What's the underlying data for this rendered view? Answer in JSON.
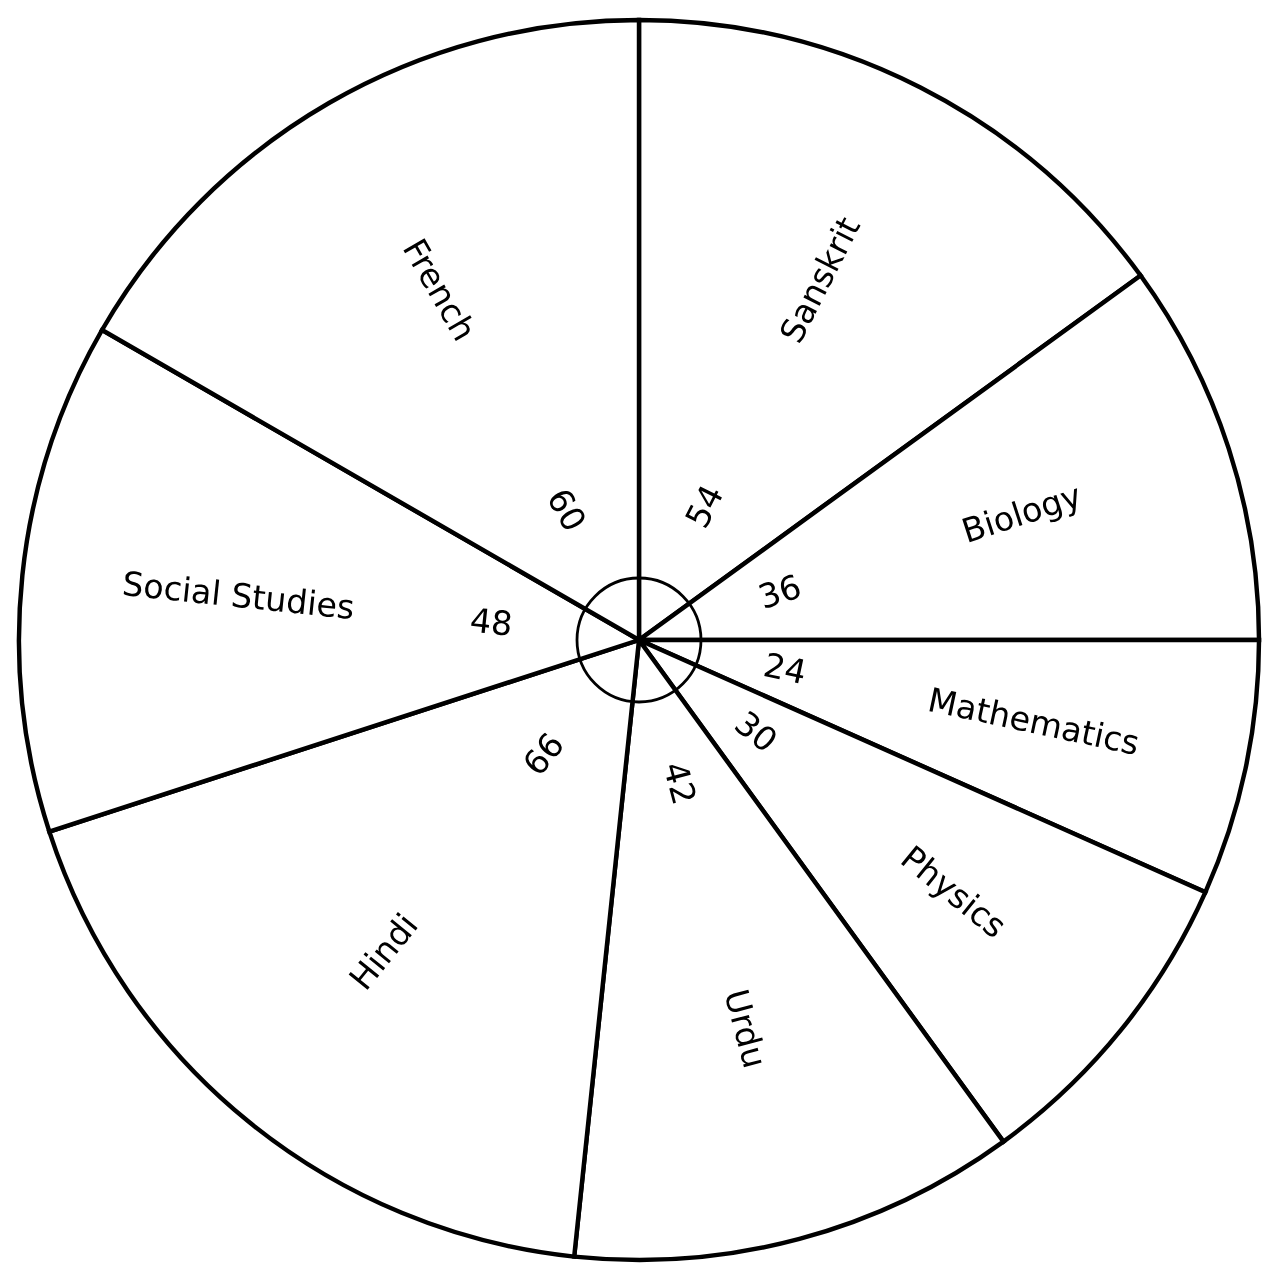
{
  "chart_data": {
    "type": "pie",
    "categories": [
      "Sanskrit",
      "Biology",
      "Mathematics",
      "Physics",
      "Urdu",
      "Hindi",
      "Social Studies",
      "French"
    ],
    "values": [
      54,
      36,
      24,
      30,
      42,
      66,
      48,
      60
    ],
    "colors": [
      "#ffffff",
      "#ffffff",
      "#ffffff",
      "#ffffff",
      "#ffffff",
      "#ffffff",
      "#ffffff",
      "#ffffff"
    ],
    "data_labels": true,
    "legend": false
  }
}
